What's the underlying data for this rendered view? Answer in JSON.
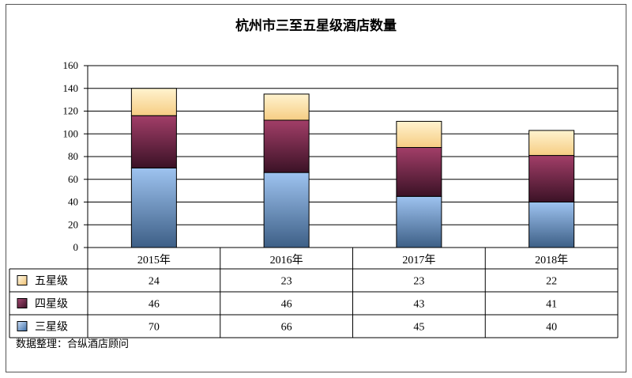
{
  "chart_data": {
    "type": "bar",
    "stacked": true,
    "title": "杭州市三至五星级酒店数量",
    "categories": [
      "2015年",
      "2016年",
      "2017年",
      "2018年"
    ],
    "series": [
      {
        "name": "三星级",
        "values": [
          70,
          66,
          45,
          40
        ],
        "color": "#7fa4d8"
      },
      {
        "name": "四星级",
        "values": [
          46,
          46,
          43,
          41
        ],
        "color": "#7a2a4c"
      },
      {
        "name": "五星级",
        "values": [
          24,
          23,
          23,
          22
        ],
        "color": "#fde4b0"
      }
    ],
    "yticks": [
      "0",
      "20",
      "40",
      "60",
      "80",
      "100",
      "120",
      "140",
      "160"
    ],
    "ylim": [
      0,
      160
    ],
    "grid": true,
    "data_table": true
  },
  "source_note": "数据整理：合纵酒店顾问"
}
